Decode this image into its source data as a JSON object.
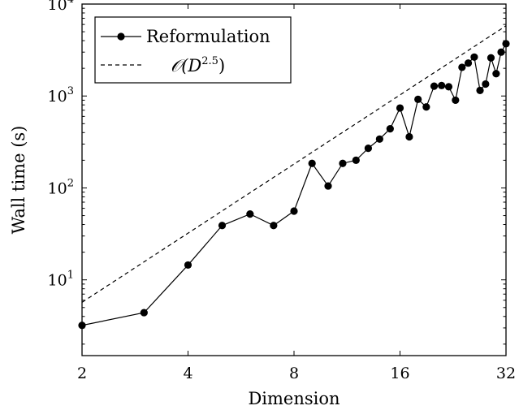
{
  "chart_data": {
    "type": "line",
    "xlabel": "Dimension",
    "ylabel": "Wall time (s)",
    "x_scale": "log2",
    "y_scale": "log10",
    "xlim": [
      2,
      32
    ],
    "ylim": [
      1.5,
      10000
    ],
    "x_ticks": [
      {
        "value": 2,
        "label": "2"
      },
      {
        "value": 4,
        "label": "4"
      },
      {
        "value": 8,
        "label": "8"
      },
      {
        "value": 16,
        "label": "16"
      },
      {
        "value": 32,
        "label": "32"
      }
    ],
    "y_ticks": [
      {
        "value": 10,
        "base": "10",
        "exp": "1"
      },
      {
        "value": 100,
        "base": "10",
        "exp": "2"
      },
      {
        "value": 1000,
        "base": "10",
        "exp": "3"
      },
      {
        "value": 10000,
        "base": "10",
        "exp": "4"
      }
    ],
    "legend_position": "top-left",
    "series": [
      {
        "name": "Reformulation",
        "style": "solid-markers",
        "color": "#000000",
        "x": [
          2,
          3,
          4,
          5,
          6,
          7,
          8,
          9,
          10,
          11,
          12,
          13,
          14,
          15,
          16,
          17,
          18,
          19,
          20,
          21,
          22,
          23,
          24,
          25,
          26,
          27,
          28,
          29,
          30,
          31,
          32
        ],
        "y": [
          3.2,
          4.4,
          14.5,
          39,
          52,
          39,
          56,
          185,
          105,
          185,
          200,
          270,
          340,
          440,
          740,
          360,
          920,
          760,
          1280,
          1300,
          1260,
          900,
          2050,
          2280,
          2650,
          1150,
          1350,
          2600,
          1750,
          3000,
          3700
        ]
      },
      {
        "name": "𝒪(D^2.5)",
        "style": "dashed",
        "color": "#000000",
        "x": [
          2,
          32
        ],
        "y": [
          5.7,
          5800
        ]
      }
    ],
    "legend": {
      "reformulation_label": "Reformulation",
      "bigo_base": "𝒪(D",
      "bigo_exp": "2.5",
      "bigo_close": ")"
    }
  }
}
